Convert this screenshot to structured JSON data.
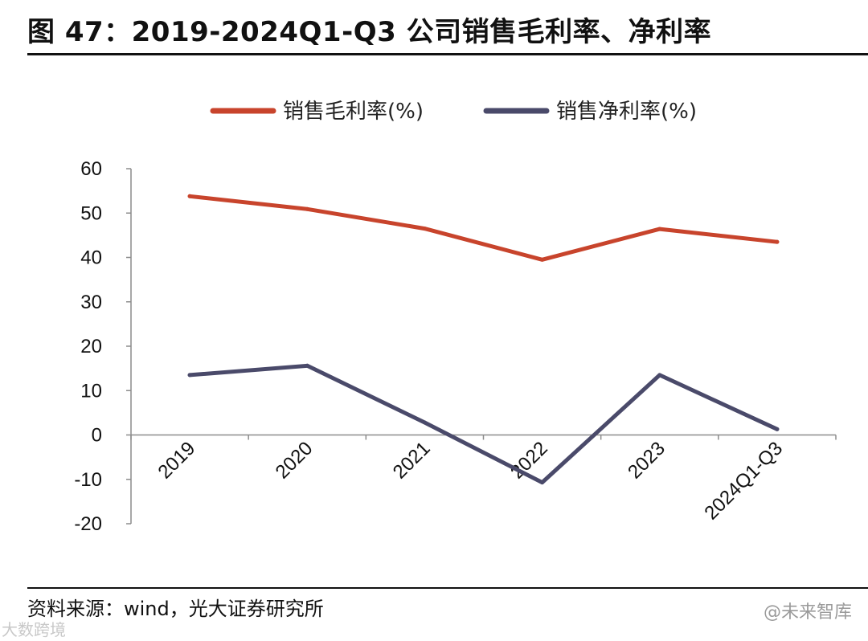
{
  "title": "图 47：2019-2024Q1-Q3 公司销售毛利率、净利率",
  "source": "资料来源：wind，光大证券研究所",
  "watermark_right": "@未来智库",
  "watermark_left": "大数跨境",
  "chart_data": {
    "type": "line",
    "categories": [
      "2019",
      "2020",
      "2021",
      "2022",
      "2023",
      "2024Q1-Q3"
    ],
    "series": [
      {
        "name": "销售毛利率(%)",
        "color": "#c8442c",
        "values": [
          53.8,
          50.9,
          46.5,
          39.5,
          46.4,
          43.5
        ]
      },
      {
        "name": "销售净利率(%)",
        "color": "#4a4a6a",
        "values": [
          13.5,
          15.6,
          2.8,
          -10.7,
          13.5,
          1.3
        ]
      }
    ],
    "yticks": [
      "60",
      "50",
      "40",
      "30",
      "20",
      "10",
      "0",
      "-10",
      "-20"
    ],
    "ylim": [
      -20,
      60
    ],
    "legend": "top",
    "grid": false
  }
}
